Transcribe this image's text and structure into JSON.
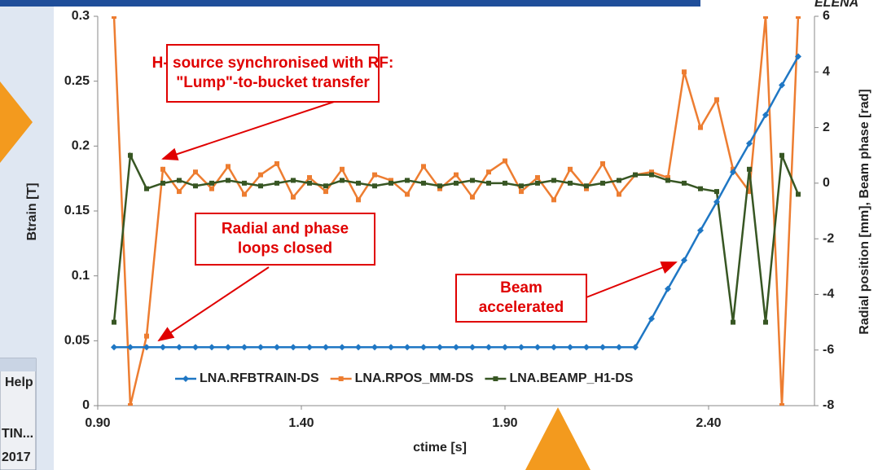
{
  "screen": {
    "logo": "ELENA",
    "window_menu": "Help",
    "window_rows": [
      "TIN...",
      "2017"
    ]
  },
  "chart_data": {
    "type": "line",
    "x_label": "ctime [s]",
    "y_label": "Btrain [T]",
    "y2_label": "Radial position [mm], Beam phase [rad]",
    "x": [
      0.94,
      0.98,
      1.02,
      1.06,
      1.1,
      1.14,
      1.18,
      1.22,
      1.26,
      1.3,
      1.34,
      1.38,
      1.42,
      1.46,
      1.5,
      1.54,
      1.58,
      1.62,
      1.66,
      1.7,
      1.74,
      1.78,
      1.82,
      1.86,
      1.9,
      1.94,
      1.98,
      2.02,
      2.06,
      2.1,
      2.14,
      2.18,
      2.22,
      2.26,
      2.3,
      2.34,
      2.38,
      2.42,
      2.46,
      2.5,
      2.54,
      2.58,
      2.62
    ],
    "xlim": [
      0.9,
      2.66
    ],
    "xticks": [
      {
        "value": 0.9,
        "label": "0.90"
      },
      {
        "value": 1.4,
        "label": "1.40"
      },
      {
        "value": 1.9,
        "label": "1.90"
      },
      {
        "value": 2.4,
        "label": "2.40"
      }
    ],
    "ylim": [
      0,
      0.3
    ],
    "yticks": [
      0,
      0.05,
      0.1,
      0.15,
      0.2,
      0.25,
      0.3
    ],
    "y2lim": [
      -8,
      6
    ],
    "y2ticks": [
      -8,
      -6,
      -4,
      -2,
      0,
      2,
      4,
      6
    ],
    "legend": "bottom",
    "series": [
      {
        "name": "LNA.RFBTRAIN-DS",
        "color": "#1f77c4",
        "marker": "diamond",
        "values": [
          0.045,
          0.045,
          0.045,
          0.045,
          0.045,
          0.045,
          0.045,
          0.045,
          0.045,
          0.045,
          0.045,
          0.045,
          0.045,
          0.045,
          0.045,
          0.045,
          0.045,
          0.045,
          0.045,
          0.045,
          0.045,
          0.045,
          0.045,
          0.045,
          0.045,
          0.045,
          0.045,
          0.045,
          0.045,
          0.045,
          0.045,
          0.045,
          0.045,
          0.067,
          0.09,
          0.112,
          0.135,
          0.157,
          0.18,
          0.202,
          0.224,
          0.247,
          0.269
        ]
      },
      {
        "name": "LNA.RPOS_MM-DS",
        "color": "#ed7d31",
        "marker": "square",
        "axis": "y2",
        "values": [
          6,
          -8,
          -5.5,
          0.5,
          -0.3,
          0.4,
          -0.2,
          0.6,
          -0.4,
          0.3,
          0.7,
          -0.5,
          0.2,
          -0.3,
          0.5,
          -0.6,
          0.3,
          0.1,
          -0.4,
          0.6,
          -0.2,
          0.3,
          -0.5,
          0.4,
          0.8,
          -0.3,
          0.2,
          -0.6,
          0.5,
          -0.2,
          0.7,
          -0.4,
          0.3,
          0.4,
          0.2,
          4,
          2,
          3,
          0.5,
          -0.3,
          6,
          -8,
          6
        ]
      },
      {
        "name": "LNA.BEAMP_H1-DS",
        "color": "#375623",
        "marker": "square",
        "axis": "y2",
        "values": [
          -5,
          1,
          -0.2,
          0,
          0.1,
          -0.1,
          0,
          0.1,
          0,
          -0.1,
          0,
          0.1,
          0,
          -0.1,
          0.1,
          0,
          -0.1,
          0,
          0.1,
          0,
          -0.1,
          0,
          0.1,
          0,
          0,
          -0.1,
          0,
          0.1,
          0,
          -0.1,
          0,
          0.1,
          0.3,
          0.3,
          0.1,
          0,
          -0.2,
          -0.3,
          -5,
          0.5,
          -5,
          1,
          -0.4
        ]
      }
    ],
    "annotations": [
      {
        "lines": [
          "H- source synchronised with RF:",
          "\"Lump\"-to-bucket transfer"
        ]
      },
      {
        "lines": [
          "Radial and phase",
          "loops closed"
        ]
      },
      {
        "lines": [
          "Beam",
          "accelerated"
        ]
      }
    ]
  }
}
